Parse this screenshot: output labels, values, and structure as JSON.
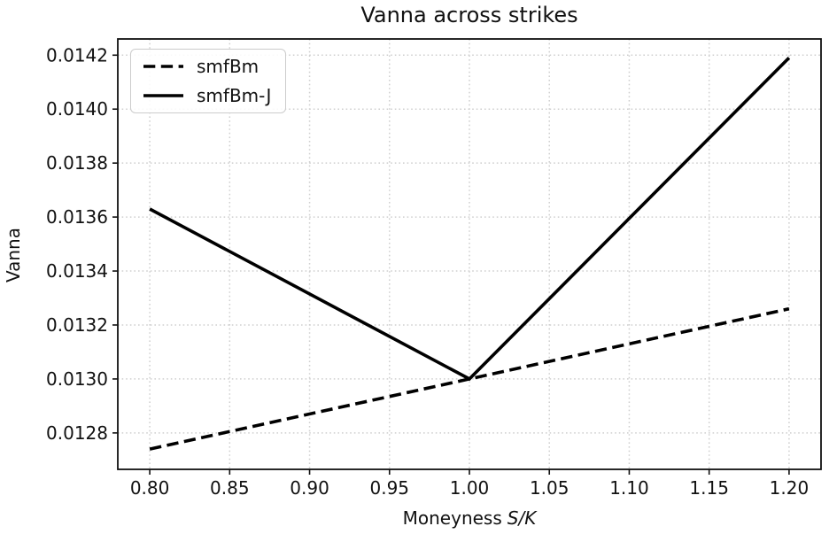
{
  "page": {
    "background": "#ffffff"
  },
  "chart_data": {
    "type": "line",
    "title": "Vanna across strikes",
    "xlabel": {
      "text": "Moneyness",
      "math": "S/K"
    },
    "ylabel": "Vanna",
    "xlim": [
      0.78,
      1.22
    ],
    "ylim": [
      0.012665,
      0.01426
    ],
    "x_ticks": [
      0.8,
      0.85,
      0.9,
      0.95,
      1.0,
      1.05,
      1.1,
      1.15,
      1.2
    ],
    "x_tick_labels": [
      "0.80",
      "0.85",
      "0.90",
      "0.95",
      "1.00",
      "1.05",
      "1.10",
      "1.15",
      "1.20"
    ],
    "y_ticks": [
      0.0128,
      0.013,
      0.0132,
      0.0134,
      0.0136,
      0.0138,
      0.014,
      0.0142
    ],
    "y_tick_labels": [
      "0.0128",
      "0.0130",
      "0.0132",
      "0.0134",
      "0.0136",
      "0.0138",
      "0.0140",
      "0.0142"
    ],
    "grid": true,
    "grid_style": "dotted",
    "grid_color": "#cfcfcf",
    "axis_color": "#111111",
    "legend_position": "upper left",
    "series": [
      {
        "name": "smfBm",
        "line_style": "dashed",
        "color": "#000000",
        "x": [
          0.8,
          1.0,
          1.2
        ],
        "y": [
          0.01274,
          0.013,
          0.01326
        ]
      },
      {
        "name": "smfBm-J",
        "line_style": "solid",
        "color": "#000000",
        "x": [
          0.8,
          1.0,
          1.2
        ],
        "y": [
          0.01363,
          0.013,
          0.01419
        ]
      }
    ]
  }
}
